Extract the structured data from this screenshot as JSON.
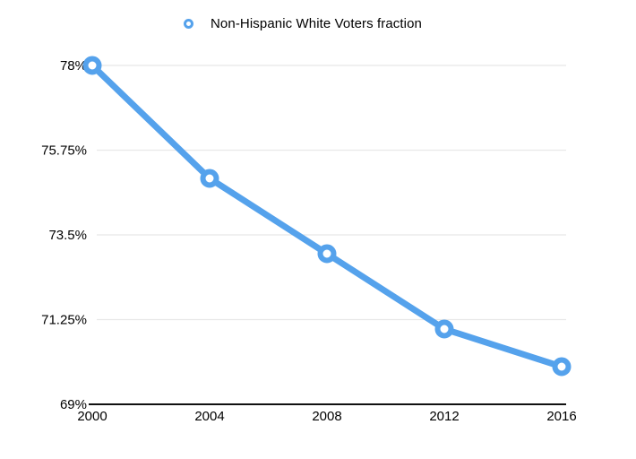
{
  "legend": {
    "label": "Non-Hispanic White Voters fraction"
  },
  "chart_data": {
    "type": "line",
    "title": "",
    "xlabel": "",
    "ylabel": "",
    "x": [
      2000,
      2004,
      2008,
      2012,
      2016
    ],
    "x_tick_labels": [
      "2000",
      "2004",
      "2008",
      "2012",
      "2016"
    ],
    "series": [
      {
        "name": "Non-Hispanic White Voters fraction",
        "values": [
          78,
          75,
          73,
          71,
          70
        ]
      }
    ],
    "ylim": [
      69,
      78
    ],
    "y_ticks": [
      69,
      71.25,
      73.5,
      75.75,
      78
    ],
    "y_tick_labels": [
      "69%",
      "71.25%",
      "73.5%",
      "75.75%",
      "78%"
    ],
    "grid": "horizontal-only",
    "legend_position": "top-center",
    "marker": "open-circle",
    "colors": {
      "line": "#55a2ec",
      "marker_fill": "#ffffff",
      "grid": "#e8e8e8",
      "axis": "#111111",
      "text": "#000000",
      "background": "#ffffff"
    }
  }
}
